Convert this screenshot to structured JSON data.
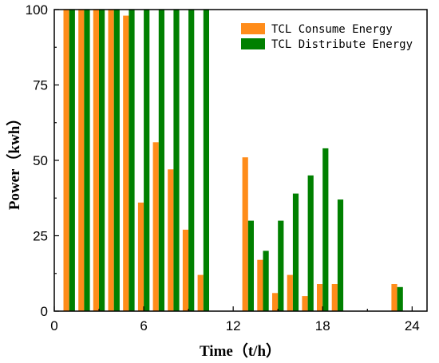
{
  "chart_data": {
    "type": "bar",
    "xlabel": "Time（t/h）",
    "ylabel": "Power（kwh）",
    "xlim": [
      0,
      25
    ],
    "ylim": [
      0,
      100
    ],
    "xticks": [
      0,
      6,
      12,
      18,
      24
    ],
    "yticks": [
      0,
      25,
      50,
      75,
      100
    ],
    "legend_position": "top-right",
    "x": [
      1,
      2,
      3,
      4,
      5,
      6,
      7,
      8,
      9,
      10,
      11,
      12,
      13,
      14,
      15,
      16,
      17,
      18,
      19,
      20,
      21,
      22,
      23,
      24
    ],
    "series": [
      {
        "name": "TCL Consume Energy",
        "color": "#FF8C1A",
        "values": [
          100,
          100,
          100,
          100,
          98,
          36,
          56,
          47,
          27,
          12,
          0,
          0,
          51,
          17,
          6,
          12,
          5,
          9,
          9,
          0,
          0,
          0,
          9,
          0
        ]
      },
      {
        "name": "TCL Distribute Energy",
        "color": "#008000",
        "values": [
          100,
          100,
          100,
          100,
          100,
          100,
          100,
          100,
          100,
          100,
          0,
          0,
          30,
          20,
          30,
          39,
          45,
          54,
          37,
          0,
          0,
          0,
          8,
          0
        ]
      }
    ]
  }
}
